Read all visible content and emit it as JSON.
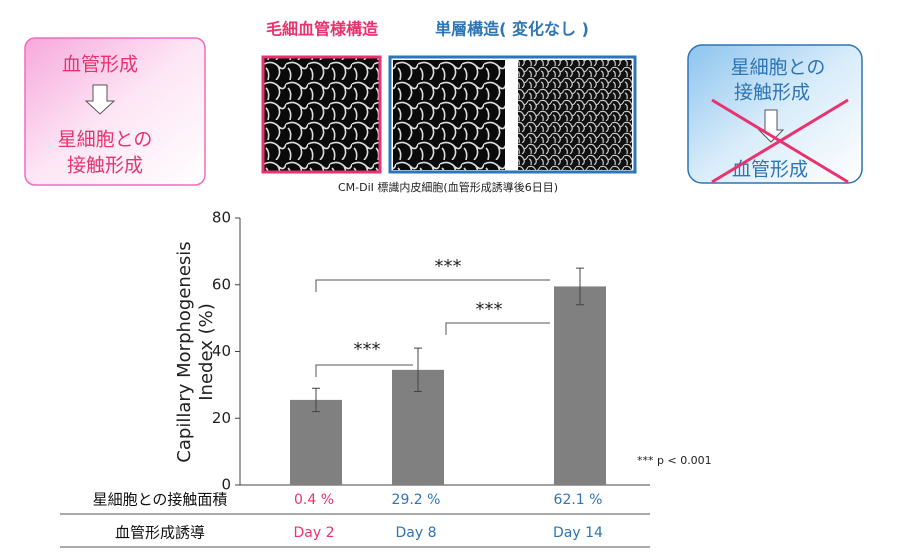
{
  "left_box": {
    "lines": [
      "血管形成",
      "星細胞との",
      "接触形成"
    ]
  },
  "image_labels": [
    "毛細血管様構造",
    "単層構造( 変化なし )"
  ],
  "image_caption": "CM-DiI 標識内皮細胞(血管形成誘導後6日目)",
  "right_box": {
    "lines": [
      "星細胞との",
      "接触形成",
      "血管形成"
    ]
  },
  "chart_data": {
    "type": "bar",
    "ylabel": [
      "Capillary Morphogenesis",
      "Inedex (%)"
    ],
    "categories": [
      "Day 2",
      "Day 8",
      "Day 14"
    ],
    "values": [
      25.5,
      34.5,
      59.5
    ],
    "errors": [
      3.5,
      6.5,
      5.5
    ],
    "color": "#808080",
    "ylim": [
      0,
      80
    ],
    "yticks": [
      0,
      20,
      40,
      60,
      80
    ],
    "significance": [
      "***",
      "***",
      "***"
    ],
    "note": "*** p < 0.001",
    "label_colors": [
      "#e8336e",
      "#2e75b6",
      "#2e75b6"
    ],
    "contact_row": {
      "label": "星細胞との接触面積",
      "cells": [
        "0.4 %",
        "29.2 %",
        "62.1 %"
      ]
    },
    "induction_row_label": "血管形成誘導"
  }
}
